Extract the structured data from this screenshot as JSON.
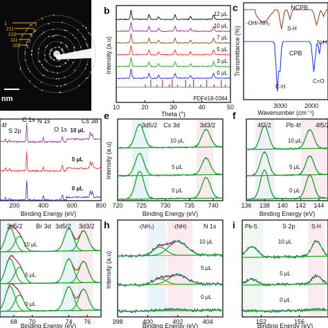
{
  "figure": {
    "panel_letters": [
      "b",
      "c",
      "e",
      "f",
      "h",
      "i"
    ]
  },
  "panel_a": {
    "scale_label": "nm",
    "planes": [
      "1",
      "211",
      "210",
      "111",
      "100"
    ]
  },
  "chart_data": [
    {
      "id": "b",
      "type": "line",
      "xlabel": "Theta (°)",
      "ylabel": "Intensity (a.u)",
      "xlim": [
        10,
        50
      ],
      "xticks": [
        "10",
        "20",
        "30",
        "40",
        "50"
      ],
      "reference_label": "PDF#18-0364",
      "reference_peaks": [
        20.2,
        22.1,
        24.3,
        26.2,
        28.6,
        29.6,
        31.5,
        34.3,
        35.8,
        37.1,
        39.6,
        41.7,
        44.3,
        46.8,
        48.2
      ],
      "peaks": [
        15.2,
        21.5,
        24.8,
        30.6,
        36.0,
        44.1
      ],
      "series": [
        {
          "name": "12 μL",
          "color": "#000000"
        },
        {
          "name": "10 μL",
          "color": "#8b2c8b"
        },
        {
          "name": "7 μL",
          "color": "#8b4513"
        },
        {
          "name": "5 μL",
          "color": "#e32626"
        },
        {
          "name": "3 μL",
          "color": "#1a9e1a"
        },
        {
          "name": "0 μL",
          "color": "#1f1fd8"
        }
      ]
    },
    {
      "id": "c",
      "type": "line",
      "xlabel": "Wavenumber (cm⁻¹)",
      "ylabel": "Transmittance (%)",
      "xticks": [
        "3000",
        "2000"
      ],
      "series": [
        {
          "name": "NCPB",
          "color": "#8b4a2b"
        },
        {
          "name": "CPB",
          "color": "#1f3fd8"
        }
      ],
      "annotations": [
        "NCPB",
        "-OH/-NH₂",
        "S-H",
        "N-H",
        "CPB",
        "C-H",
        "C=O"
      ]
    },
    {
      "id": "d",
      "type": "line",
      "xlabel": "Binding Energy (eV)",
      "xticks": [
        "200",
        "400",
        "600",
        "800"
      ],
      "annotations": [
        "4f",
        "C 1s",
        "N 1s",
        "S 2p",
        "O 1s",
        "Cs 3d"
      ],
      "series": [
        {
          "name": "10 μL",
          "color": "#8b2c8b"
        },
        {
          "name": "5 μL",
          "color": "#e32626"
        },
        {
          "name": "0 μL",
          "color": "#1f1fd8"
        }
      ]
    },
    {
      "id": "e",
      "type": "line",
      "title": "Cs 3d",
      "xlabel": "Binding Energy (eV)",
      "ylabel": "Intensity (a.u)",
      "xlim": [
        720,
        742
      ],
      "xticks": [
        "720",
        "725",
        "730",
        "735",
        "740"
      ],
      "peaks": [
        {
          "label": "3d5/2",
          "x": 724.6
        },
        {
          "label": "3d3/2",
          "x": 738.5
        }
      ],
      "series": [
        {
          "name": "10 μL"
        },
        {
          "name": "5 μL"
        },
        {
          "name": "0 μL"
        }
      ]
    },
    {
      "id": "f",
      "type": "line",
      "title": "Pb 4f",
      "xlabel": "Binding Energy (eV)",
      "xlim": [
        136,
        145
      ],
      "xticks": [
        "136",
        "138",
        "140",
        "142",
        "144"
      ],
      "peaks": [
        {
          "label": "4f7/2",
          "x": 138.0
        },
        {
          "label": "4f5/2",
          "x": 143.0
        }
      ],
      "series": [
        {
          "name": "10 μL"
        },
        {
          "name": "5 μL"
        },
        {
          "name": "0 μL"
        }
      ]
    },
    {
      "id": "g",
      "type": "line",
      "title": "Br 3d",
      "xlabel": "Binding Energy (eV)",
      "xlim": [
        67,
        71.8
      ],
      "xticks": [
        "68",
        "70"
      ],
      "peaks": [
        {
          "label": "3d5/2",
          "x": 68.1
        },
        {
          "label": "3d3/2",
          "x": 69.2
        }
      ],
      "series": [
        {
          "name": "10 μL"
        },
        {
          "name": "5 μL"
        },
        {
          "name": "0 μL"
        }
      ]
    },
    {
      "id": "h",
      "type": "line",
      "title": "N 1s",
      "xlabel": "Binding Energy (eV)",
      "ylabel": "Intensity (a.u)",
      "xlim": [
        398,
        405
      ],
      "xticks": [
        "398",
        "400",
        "402",
        "404"
      ],
      "peaks": [
        {
          "label": "-(NH₃)",
          "x": 400.8
        },
        {
          "label": "-(NH)",
          "x": 402.0
        }
      ],
      "series": [
        {
          "name": "10 μL"
        },
        {
          "name": "5 μL"
        },
        {
          "name": "0 μL"
        }
      ]
    },
    {
      "id": "i",
      "type": "line",
      "title": "S 2p",
      "xlabel": "Binding Energy (eV)",
      "xlim": [
        150,
        159
      ],
      "xticks": [
        "152",
        "156"
      ],
      "peaks": [
        {
          "label": "Pb-S",
          "x": 151.0
        },
        {
          "label": "S-H",
          "x": 157.8
        }
      ],
      "series": [
        {
          "name": "10 μL"
        },
        {
          "name": "5 μL"
        },
        {
          "name": "0 μL"
        }
      ]
    }
  ],
  "panel_g_extra": {
    "labels": [
      "3d3/2",
      "3d5/2",
      "3d3/2"
    ],
    "xticks_right": [
      "74",
      "76"
    ]
  }
}
